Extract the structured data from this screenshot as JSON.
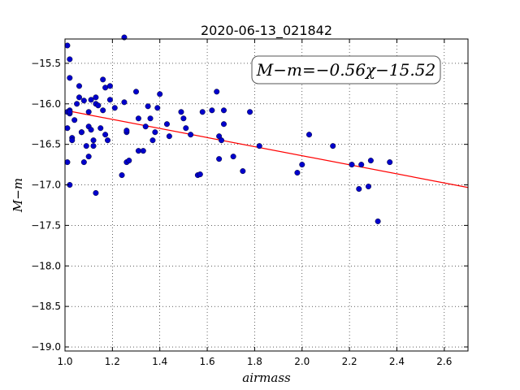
{
  "chart_data": {
    "type": "scatter",
    "title": "2020-06-13_021842",
    "xlabel": "airmass",
    "ylabel": "M−m",
    "xlim": [
      1.0,
      2.7
    ],
    "ylim": [
      -19.05,
      -15.2
    ],
    "y_inverted": true,
    "grid": true,
    "x_ticks": [
      "1.0",
      "1.2",
      "1.4",
      "1.6",
      "1.8",
      "2.0",
      "2.2",
      "2.4",
      "2.6"
    ],
    "y_ticks": [
      "−15.5",
      "−16.0",
      "−16.5",
      "−17.0",
      "−17.5",
      "−18.0",
      "−18.5",
      "−19.0"
    ],
    "annotation": "M−m=−0.56χ−15.52",
    "fit": {
      "slope": -0.56,
      "intercept": -15.52,
      "color": "#ff0000"
    },
    "point_color": "#0000cc",
    "x": [
      1.01,
      1.01,
      1.02,
      1.02,
      1.03,
      1.01,
      1.02,
      1.02,
      1.03,
      1.01,
      1.02,
      1.04,
      1.05,
      1.06,
      1.06,
      1.07,
      1.07,
      1.08,
      1.08,
      1.09,
      1.1,
      1.1,
      1.11,
      1.11,
      1.12,
      1.12,
      1.13,
      1.13,
      1.14,
      1.15,
      1.16,
      1.16,
      1.17,
      1.17,
      1.18,
      1.19,
      1.19,
      1.21,
      1.24,
      1.25,
      1.25,
      1.26,
      1.26,
      1.27,
      1.3,
      1.31,
      1.31,
      1.33,
      1.34,
      1.35,
      1.36,
      1.37,
      1.38,
      1.39,
      1.4,
      1.43,
      1.44,
      1.49,
      1.5,
      1.51,
      1.53,
      1.56,
      1.57,
      1.58,
      1.62,
      1.64,
      1.65,
      1.65,
      1.66,
      1.67,
      1.67,
      1.71,
      1.75,
      1.78,
      1.82,
      1.98,
      2.0,
      2.03,
      2.13,
      2.21,
      2.24,
      2.25,
      2.28,
      2.29,
      2.32,
      2.37,
      1.02,
      1.1,
      1.13,
      1.26
    ],
    "y": [
      -15.28,
      -16.3,
      -15.45,
      -15.68,
      -16.42,
      -16.1,
      -16.12,
      -16.08,
      -16.45,
      -16.72,
      -17.0,
      -16.2,
      -16.0,
      -15.92,
      -15.78,
      -16.35,
      -16.35,
      -15.96,
      -16.72,
      -16.52,
      -16.28,
      -16.1,
      -15.95,
      -16.32,
      -16.45,
      -16.52,
      -15.92,
      -16.0,
      -16.02,
      -16.3,
      -16.08,
      -15.7,
      -16.38,
      -15.8,
      -16.45,
      -15.78,
      -15.95,
      -16.05,
      -16.88,
      -15.18,
      -15.98,
      -16.72,
      -16.35,
      -16.7,
      -15.85,
      -16.18,
      -16.58,
      -16.58,
      -16.28,
      -16.03,
      -16.18,
      -16.45,
      -16.35,
      -16.05,
      -15.88,
      -16.25,
      -16.4,
      -16.1,
      -16.18,
      -16.3,
      -16.38,
      -16.88,
      -16.87,
      -16.1,
      -16.08,
      -15.85,
      -16.4,
      -16.68,
      -16.45,
      -16.08,
      -16.25,
      -16.65,
      -16.83,
      -16.1,
      -16.52,
      -16.85,
      -16.75,
      -16.38,
      -16.52,
      -16.75,
      -17.05,
      -16.75,
      -17.02,
      -16.7,
      -17.45,
      -16.72,
      -16.1,
      -16.65,
      -17.1,
      -16.33
    ]
  }
}
